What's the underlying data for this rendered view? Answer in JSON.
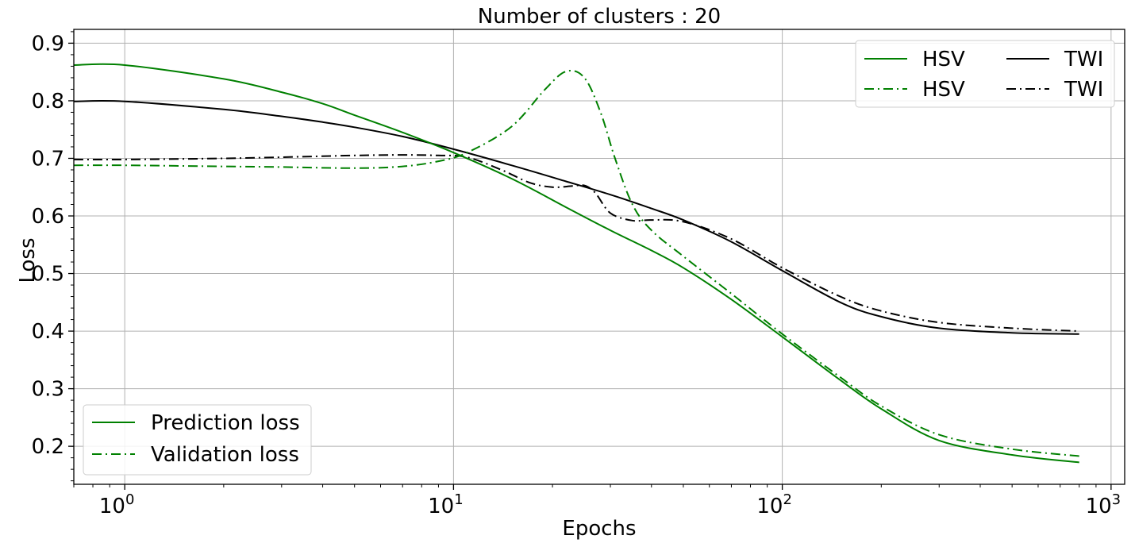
{
  "colors": {
    "hsv": "#008000",
    "twi": "#000000",
    "grid": "#b0b0b0"
  },
  "chart_data": {
    "type": "line",
    "title": "Number of clusters : 20",
    "xlabel": "Epochs",
    "ylabel": "Loss",
    "xscale": "log",
    "xlim": [
      0.7,
      1100
    ],
    "ylim": [
      0.134,
      0.924
    ],
    "grid": true,
    "xticks": [
      {
        "value": 1,
        "base": "10",
        "exp": "0"
      },
      {
        "value": 10,
        "base": "10",
        "exp": "1"
      },
      {
        "value": 100,
        "base": "10",
        "exp": "2"
      },
      {
        "value": 1000,
        "base": "10",
        "exp": "3"
      }
    ],
    "yticks": [
      {
        "value": 0.2,
        "label": "0.2"
      },
      {
        "value": 0.3,
        "label": "0.3"
      },
      {
        "value": 0.4,
        "label": "0.4"
      },
      {
        "value": 0.5,
        "label": "0.5"
      },
      {
        "value": 0.6,
        "label": "0.6"
      },
      {
        "value": 0.7,
        "label": "0.7"
      },
      {
        "value": 0.8,
        "label": "0.8"
      },
      {
        "value": 0.9,
        "label": "0.9"
      }
    ],
    "series": [
      {
        "name": "HSV",
        "style": "solid",
        "color": "#008000",
        "x": [
          0.7,
          1,
          2,
          3,
          4,
          5,
          7,
          10,
          15,
          22,
          30,
          40,
          50,
          70,
          100,
          150,
          200,
          300,
          500,
          800
        ],
        "y": [
          0.862,
          0.862,
          0.838,
          0.815,
          0.795,
          0.775,
          0.745,
          0.71,
          0.665,
          0.615,
          0.575,
          0.54,
          0.51,
          0.455,
          0.39,
          0.315,
          0.265,
          0.21,
          0.185,
          0.172
        ]
      },
      {
        "name": "HSV",
        "style": "dashdot",
        "color": "#008000",
        "x": [
          0.7,
          1,
          2,
          3,
          5,
          7,
          9,
          11,
          15,
          19,
          22,
          25,
          28,
          31,
          35,
          40,
          50,
          70,
          100,
          150,
          200,
          300,
          500,
          800
        ],
        "y": [
          0.688,
          0.688,
          0.686,
          0.685,
          0.683,
          0.686,
          0.695,
          0.71,
          0.755,
          0.82,
          0.851,
          0.84,
          0.78,
          0.7,
          0.62,
          0.575,
          0.53,
          0.465,
          0.395,
          0.32,
          0.27,
          0.22,
          0.195,
          0.183
        ]
      },
      {
        "name": "TWI",
        "style": "solid",
        "color": "#000000",
        "x": [
          0.7,
          1,
          2,
          3,
          4,
          5,
          7,
          10,
          15,
          22,
          30,
          40,
          50,
          70,
          100,
          150,
          200,
          300,
          500,
          800
        ],
        "y": [
          0.799,
          0.799,
          0.785,
          0.773,
          0.763,
          0.754,
          0.738,
          0.716,
          0.688,
          0.66,
          0.637,
          0.613,
          0.593,
          0.555,
          0.505,
          0.45,
          0.425,
          0.405,
          0.397,
          0.395
        ]
      },
      {
        "name": "TWI",
        "style": "dashdot",
        "color": "#000000",
        "x": [
          0.7,
          1,
          2,
          3,
          5,
          7,
          9,
          11,
          14,
          17,
          20,
          23,
          25,
          27,
          30,
          35,
          40,
          50,
          70,
          100,
          150,
          200,
          300,
          500,
          800
        ],
        "y": [
          0.698,
          0.698,
          0.7,
          0.702,
          0.705,
          0.706,
          0.705,
          0.702,
          0.68,
          0.658,
          0.65,
          0.652,
          0.653,
          0.64,
          0.605,
          0.592,
          0.593,
          0.59,
          0.56,
          0.51,
          0.46,
          0.435,
          0.415,
          0.405,
          0.4
        ]
      }
    ],
    "legend_top": {
      "position": "top-right",
      "entries": [
        {
          "label": "HSV",
          "style": "solid",
          "color": "#008000"
        },
        {
          "label": "HSV",
          "style": "dashdot",
          "color": "#008000"
        },
        {
          "label": "TWI",
          "style": "solid",
          "color": "#000000"
        },
        {
          "label": "TWI",
          "style": "dashdot",
          "color": "#000000"
        }
      ]
    },
    "legend_bottom": {
      "position": "bottom-left",
      "entries": [
        {
          "label": "Prediction loss",
          "style": "solid",
          "color": "#008000"
        },
        {
          "label": "Validation loss",
          "style": "dashdot",
          "color": "#008000"
        }
      ]
    }
  }
}
